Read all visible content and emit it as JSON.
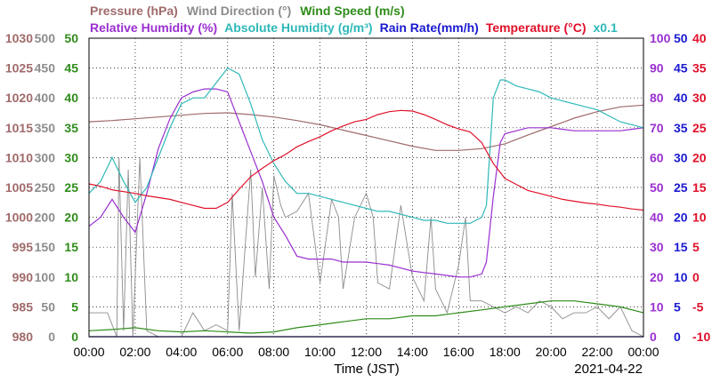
{
  "legend": {
    "row1": [
      {
        "text": "Pressure (hPa)",
        "color": "#a06a6a"
      },
      {
        "text": "Wind Direction (°)",
        "color": "#8c8c8c"
      },
      {
        "text": "Wind Speed (m/s)",
        "color": "#2f8c1a"
      }
    ],
    "row2": [
      {
        "text": "Relative Humidity (%)",
        "color": "#9a2fd0"
      },
      {
        "text": "Absolute Humidity (g/m³)",
        "color": "#2fb8b8"
      },
      {
        "text": "Rain Rate(mm/h)",
        "color": "#1a1ad0"
      },
      {
        "text": "Temperature (°C)",
        "color": "#e0102a"
      },
      {
        "text": "x0.1",
        "color": "#2fb8b8"
      }
    ]
  },
  "footer": {
    "xlabel": "Time (JST)",
    "date": "2021-04-22"
  },
  "chart_data": {
    "type": "line",
    "x_ticks": [
      "00:00",
      "02:00",
      "04:00",
      "06:00",
      "08:00",
      "10:00",
      "12:00",
      "14:00",
      "16:00",
      "18:00",
      "20:00",
      "22:00",
      "00:00"
    ],
    "axes": {
      "pressure": {
        "color": "#a06a6a",
        "ylim": [
          980,
          1030
        ],
        "ticks": [
          980,
          985,
          990,
          995,
          1000,
          1005,
          1010,
          1015,
          1020,
          1025,
          1030
        ]
      },
      "wind_direction": {
        "color": "#8c8c8c",
        "ylim": [
          0,
          500
        ],
        "ticks": [
          0,
          50,
          100,
          150,
          200,
          250,
          300,
          350,
          400,
          450,
          500
        ]
      },
      "wind_speed": {
        "color": "#2f8c1a",
        "ylim": [
          0,
          50
        ],
        "ticks": [
          0,
          5,
          10,
          15,
          20,
          25,
          30,
          35,
          40,
          45,
          50
        ]
      },
      "relative_humidity": {
        "color": "#9a2fd0",
        "ylim": [
          0,
          100
        ],
        "ticks": [
          0,
          10,
          20,
          30,
          40,
          50,
          60,
          70,
          80,
          90,
          100
        ]
      },
      "rain_rate": {
        "color": "#1a1ad0",
        "ylim": [
          0,
          50
        ],
        "ticks": [
          0,
          5,
          10,
          15,
          20,
          25,
          30,
          35,
          40,
          45,
          50
        ]
      },
      "temperature": {
        "color": "#e0102a",
        "ylim": [
          -10,
          40
        ],
        "ticks": [
          -10,
          -5,
          0,
          5,
          10,
          15,
          20,
          25,
          30,
          35,
          40
        ]
      }
    },
    "series": [
      {
        "key": "pressure",
        "color": "#a06a6a",
        "axis": "pressure",
        "x": [
          0,
          1,
          2,
          3,
          4,
          5,
          6,
          7,
          8,
          9,
          10,
          11,
          12,
          13,
          14,
          15,
          16,
          17,
          18,
          19,
          20,
          21,
          22,
          23,
          24
        ],
        "y": [
          1016,
          1016.2,
          1016.5,
          1016.8,
          1017.1,
          1017.4,
          1017.5,
          1017.2,
          1016.8,
          1016.2,
          1015.5,
          1014.6,
          1013.7,
          1012.8,
          1011.9,
          1011.2,
          1011.2,
          1011.5,
          1012.3,
          1013.8,
          1015.2,
          1016.6,
          1017.7,
          1018.5,
          1018.8
        ]
      },
      {
        "key": "wind_direction",
        "color": "#8c8c8c",
        "axis": "wind_direction",
        "x": [
          0,
          0.8,
          1.2,
          1.3,
          1.5,
          1.7,
          1.9,
          2.2,
          2.5,
          3,
          3.5,
          4,
          4.5,
          5,
          5.5,
          6,
          6.2,
          6.5,
          7,
          7.2,
          7.5,
          7.8,
          8,
          8.3,
          8.5,
          9,
          9.5,
          10,
          10.5,
          10.8,
          11,
          11.5,
          12,
          12.3,
          12.5,
          13,
          13.5,
          14,
          14.5,
          14.8,
          15,
          15.5,
          16,
          16.3,
          16.5,
          17,
          17.5,
          18,
          18.5,
          19,
          19.5,
          20,
          20.5,
          21,
          21.5,
          22,
          22.5,
          23,
          23.5,
          24
        ],
        "y": [
          40,
          40,
          0,
          300,
          10,
          280,
          0,
          300,
          10,
          0,
          0,
          0,
          40,
          10,
          20,
          10,
          240,
          10,
          280,
          100,
          250,
          80,
          270,
          220,
          200,
          210,
          240,
          90,
          230,
          200,
          80,
          200,
          240,
          200,
          90,
          80,
          220,
          100,
          60,
          200,
          80,
          40,
          120,
          200,
          60,
          60,
          50,
          40,
          50,
          40,
          60,
          50,
          30,
          40,
          40,
          50,
          30,
          50,
          10,
          0
        ]
      },
      {
        "key": "wind_speed",
        "color": "#2f8c1a",
        "axis": "wind_speed",
        "x": [
          0,
          1,
          2,
          3,
          4,
          5,
          6,
          7,
          8,
          9,
          10,
          11,
          12,
          13,
          14,
          15,
          16,
          17,
          18,
          19,
          20,
          21,
          22,
          23,
          24
        ],
        "y": [
          1,
          1.2,
          1.5,
          1,
          0.8,
          1,
          0.8,
          0.6,
          0.8,
          1.5,
          2,
          2.5,
          3,
          3,
          3.5,
          3.5,
          4,
          4.5,
          5,
          5.5,
          6,
          6,
          5.5,
          5,
          4
        ]
      },
      {
        "key": "relative_humidity",
        "color": "#9a2fd0",
        "axis": "relative_humidity",
        "x": [
          0,
          0.5,
          1,
          1.5,
          2,
          2.5,
          3,
          3.5,
          4,
          4.5,
          5,
          5.5,
          6,
          6.5,
          7,
          7.5,
          8,
          8.5,
          9,
          9.5,
          10,
          10.5,
          11,
          11.5,
          12,
          12.5,
          13,
          13.5,
          14,
          14.5,
          15,
          15.5,
          16,
          16.5,
          17,
          17.2,
          17.5,
          17.8,
          18,
          18.5,
          19,
          19.5,
          20,
          20.5,
          21,
          21.5,
          22,
          22.5,
          23,
          23.5,
          24
        ],
        "y": [
          37,
          40,
          46,
          40,
          35,
          48,
          63,
          73,
          80,
          82,
          83,
          83,
          82,
          72,
          62,
          52,
          40,
          34,
          27,
          26,
          26,
          26,
          25,
          25,
          25,
          24.5,
          24,
          23,
          22,
          21.5,
          21,
          20.5,
          20,
          20,
          21,
          25,
          47,
          65,
          68,
          69,
          70,
          70,
          70,
          69.5,
          69,
          69,
          69,
          69,
          69,
          69.5,
          70
        ]
      },
      {
        "key": "absolute_humidity",
        "color": "#2fb8b8",
        "axis": "relative_humidity",
        "x": [
          0,
          0.5,
          1,
          1.5,
          2,
          2.5,
          3,
          3.5,
          4,
          4.5,
          5,
          5.5,
          6,
          6.5,
          7,
          7.5,
          8,
          8.5,
          9,
          9.5,
          10,
          10.5,
          11,
          11.5,
          12,
          12.5,
          13,
          13.5,
          14,
          14.5,
          15,
          15.5,
          16,
          16.5,
          17,
          17.2,
          17.5,
          17.8,
          18,
          18.5,
          19,
          19.5,
          20,
          20.5,
          21,
          21.5,
          22,
          22.5,
          23,
          23.5,
          24
        ],
        "y": [
          48,
          52,
          60,
          52,
          45,
          50,
          60,
          70,
          78,
          80,
          80,
          85,
          90,
          88,
          78,
          66,
          58,
          52,
          48,
          48,
          47,
          46,
          45,
          44,
          43,
          42,
          42,
          41,
          40,
          39,
          39,
          38,
          38,
          38,
          40,
          44,
          80,
          86,
          86,
          84,
          83,
          82,
          80,
          79,
          78,
          77,
          76,
          74,
          72,
          71,
          70
        ]
      },
      {
        "key": "rain_rate",
        "color": "#1a1ad0",
        "axis": "rain_rate",
        "x": [
          0,
          24
        ],
        "y": [
          0,
          0
        ]
      },
      {
        "key": "temperature",
        "color": "#e0102a",
        "axis": "temperature",
        "x": [
          0,
          0.5,
          1,
          1.5,
          2,
          2.5,
          3,
          3.5,
          4,
          4.5,
          5,
          5.5,
          6,
          6.5,
          7,
          7.5,
          8,
          8.5,
          9,
          9.5,
          10,
          10.5,
          11,
          11.5,
          12,
          12.5,
          13,
          13.5,
          14,
          14.5,
          15,
          15.5,
          16,
          16.5,
          17,
          17.5,
          18,
          18.5,
          19,
          19.5,
          20,
          20.5,
          21,
          21.5,
          22,
          22.5,
          23,
          23.5,
          24
        ],
        "y": [
          15.6,
          15.2,
          14.6,
          14.3,
          14.0,
          13.6,
          13.3,
          13,
          12.5,
          12,
          11.5,
          11.5,
          12.5,
          14.7,
          16.8,
          18.2,
          19.5,
          20.5,
          21.8,
          22.7,
          23.5,
          24.5,
          25.3,
          26,
          26.4,
          27.2,
          27.7,
          27.9,
          27.8,
          27.2,
          26.4,
          25.5,
          24.8,
          24.3,
          22.5,
          19,
          16.5,
          15.5,
          14.5,
          14.0,
          13.5,
          13,
          12.7,
          12.4,
          12.2,
          11.9,
          11.7,
          11.4,
          11.2
        ]
      }
    ]
  }
}
